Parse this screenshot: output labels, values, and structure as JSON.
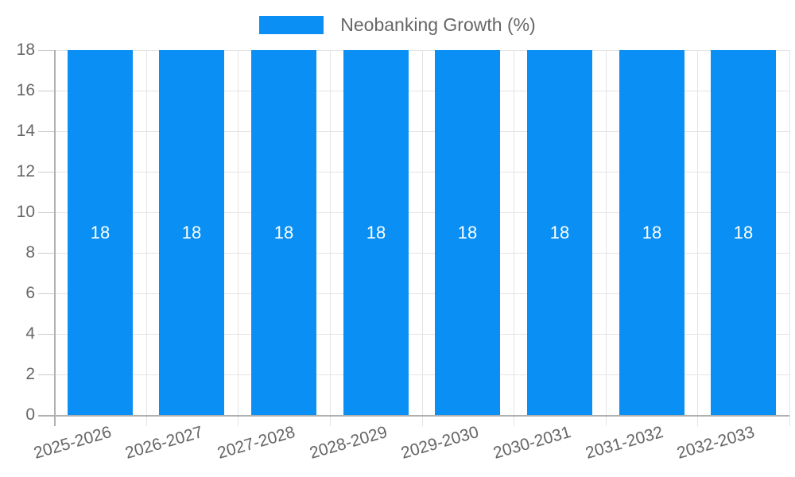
{
  "legend": {
    "label": "Neobanking Growth (%)"
  },
  "colors": {
    "bar": "#0a90f4",
    "axis": "#b0b0b0",
    "grid": "#e4e4e4",
    "tick": "#cccccc",
    "label": "#666666",
    "value_label": "#ffffff"
  },
  "chart_data": {
    "type": "bar",
    "title": "",
    "xlabel": "",
    "ylabel": "",
    "categories": [
      "2025-2026",
      "2026-2027",
      "2027-2028",
      "2028-2029",
      "2029-2030",
      "2030-2031",
      "2031-2032",
      "2032-2033"
    ],
    "series": [
      {
        "name": "Neobanking Growth (%)",
        "values": [
          18,
          18,
          18,
          18,
          18,
          18,
          18,
          18
        ]
      }
    ],
    "bar_value_labels": [
      "18",
      "18",
      "18",
      "18",
      "18",
      "18",
      "18",
      "18"
    ],
    "ylim": [
      0,
      18
    ],
    "yticks": [
      0,
      2,
      4,
      6,
      8,
      10,
      12,
      14,
      16,
      18
    ],
    "grid": true,
    "legend_position": "top"
  }
}
